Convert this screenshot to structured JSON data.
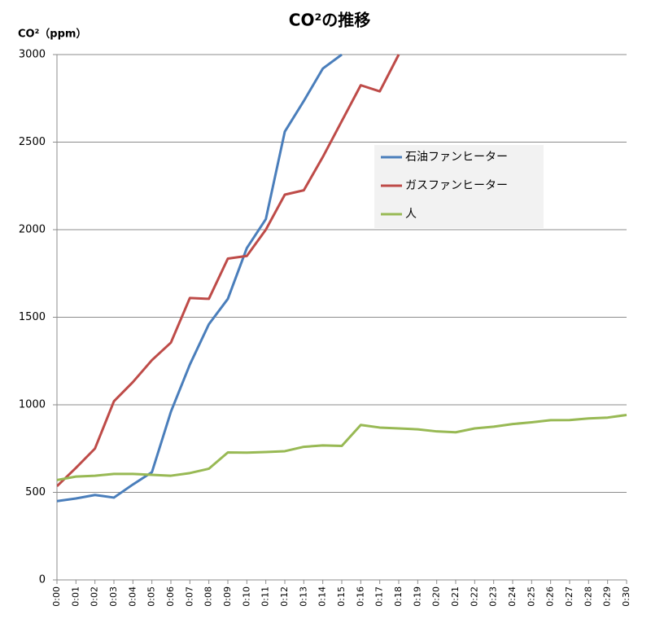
{
  "chart_data": {
    "type": "line",
    "title": "CO²の推移",
    "y_label": "CO²（ppm）",
    "categories": [
      "0:00",
      "0:01",
      "0:02",
      "0:03",
      "0:04",
      "0:05",
      "0:06",
      "0:07",
      "0:08",
      "0:09",
      "0:10",
      "0:11",
      "0:12",
      "0:13",
      "0:14",
      "0:15",
      "0:16",
      "0:17",
      "0:18",
      "0:19",
      "0:20",
      "0:21",
      "0:22",
      "0:23",
      "0:24",
      "0:25",
      "0:26",
      "0:27",
      "0:28",
      "0:29",
      "0:30"
    ],
    "series": [
      {
        "name": "石油ファンヒーター",
        "color": "#4a7ebb",
        "values": [
          450,
          465,
          485,
          470,
          545,
          615,
          960,
          1230,
          1460,
          1605,
          1895,
          2060,
          2560,
          2735,
          2920,
          3000,
          null,
          null,
          null,
          null,
          null,
          null,
          null,
          null,
          null,
          null,
          null,
          null,
          null,
          null,
          null
        ]
      },
      {
        "name": "ガスファンヒーター",
        "color": "#be4b48",
        "values": [
          535,
          640,
          750,
          1020,
          1130,
          1255,
          1355,
          1610,
          1605,
          1835,
          1850,
          2000,
          2200,
          2225,
          2415,
          2620,
          2825,
          2790,
          3000,
          null,
          null,
          null,
          null,
          null,
          null,
          null,
          null,
          null,
          null,
          null,
          null
        ]
      },
      {
        "name": "人",
        "color": "#98b954",
        "values": [
          570,
          590,
          595,
          605,
          605,
          600,
          595,
          610,
          635,
          728,
          727,
          730,
          735,
          760,
          768,
          765,
          885,
          870,
          865,
          860,
          848,
          843,
          865,
          875,
          890,
          900,
          912,
          913,
          922,
          927,
          942
        ]
      }
    ],
    "ylim": [
      0,
      3000
    ],
    "yticks": [
      0,
      500,
      1000,
      1500,
      2000,
      2500,
      3000
    ],
    "grid": true,
    "legend": "right"
  }
}
